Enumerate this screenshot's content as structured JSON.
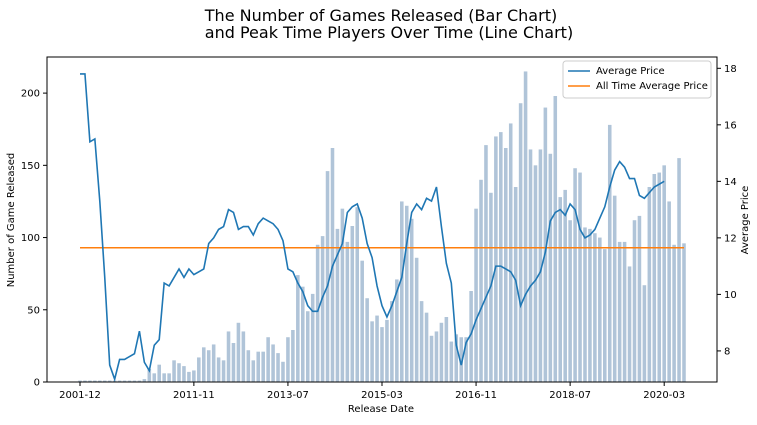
{
  "chart_data": {
    "type": "bar+line",
    "title_line1": "The Number of Games Released (Bar Chart)",
    "title_line2": "and Peak Time Players Over Time (Line Chart)",
    "xlabel": "Release Date",
    "ylabel_left": "Number of Game Released",
    "ylabel_right": "Average Price",
    "x_ticks": [
      "2001-12",
      "2011-11",
      "2013-07",
      "2015-03",
      "2016-11",
      "2018-07",
      "2020-03"
    ],
    "y_left_ticks": [
      "0",
      "50",
      "100",
      "150",
      "200"
    ],
    "y_left_lim": [
      0,
      225
    ],
    "y_right_ticks": [
      "8",
      "10",
      "12",
      "14",
      "16",
      "18"
    ],
    "y_right_lim": [
      6.9,
      18.4
    ],
    "bar_color": "#b0c4d8",
    "line_color": "#1f77b4",
    "avg_line_color": "#ff7f0e",
    "legend": {
      "position": "top-right",
      "entries": [
        {
          "label": "Average Price",
          "color": "#1f77b4"
        },
        {
          "label": "All Time Average Price",
          "color": "#ff7f0e"
        }
      ]
    },
    "bars_games_released": [
      1,
      1,
      1,
      1,
      1,
      1,
      1,
      1,
      1,
      1,
      1,
      1,
      1,
      2,
      9,
      6,
      12,
      6,
      6,
      15,
      13,
      11,
      7,
      8,
      17,
      24,
      22,
      26,
      17,
      15,
      35,
      27,
      41,
      35,
      22,
      15,
      21,
      21,
      31,
      26,
      20,
      14,
      31,
      36,
      74,
      66,
      49,
      61,
      95,
      101,
      146,
      162,
      106,
      120,
      97,
      108,
      121,
      84,
      58,
      42,
      46,
      38,
      43,
      56,
      71,
      125,
      122,
      113,
      86,
      56,
      48,
      32,
      35,
      41,
      45,
      28,
      33,
      31,
      31,
      63,
      120,
      140,
      164,
      131,
      170,
      173,
      162,
      179,
      135,
      193,
      215,
      161,
      150,
      161,
      190,
      158,
      198,
      128,
      133,
      112,
      148,
      145,
      107,
      106,
      103,
      100,
      92,
      178,
      129,
      97,
      97,
      80,
      112,
      115,
      67,
      135,
      144,
      145,
      150,
      125,
      95,
      155,
      96
    ],
    "avg_price_line": [
      17.8,
      17.8,
      15.4,
      15.5,
      13.3,
      10.6,
      7.5,
      7.0,
      7.7,
      7.7,
      7.8,
      7.9,
      8.7,
      7.6,
      7.3,
      8.2,
      8.4,
      10.4,
      10.3,
      10.6,
      10.9,
      10.6,
      10.9,
      10.7,
      10.8,
      10.9,
      11.8,
      12.0,
      12.3,
      12.4,
      13.0,
      12.9,
      12.3,
      12.4,
      12.4,
      12.1,
      12.5,
      12.7,
      12.6,
      12.5,
      12.3,
      11.9,
      10.9,
      10.8,
      10.4,
      10.1,
      9.6,
      9.4,
      9.4,
      9.9,
      10.3,
      11.0,
      11.4,
      11.8,
      12.9,
      13.1,
      13.2,
      12.7,
      11.8,
      11.3,
      10.3,
      9.6,
      9.2,
      9.6,
      10.1,
      10.6,
      11.8,
      12.9,
      13.2,
      13.0,
      13.4,
      13.3,
      13.8,
      12.4,
      11.1,
      10.4,
      8.2,
      7.5,
      8.3,
      8.6,
      9.1,
      9.5,
      9.9,
      10.3,
      11.0,
      11.0,
      10.9,
      10.8,
      10.5,
      9.6,
      10.0,
      10.3,
      10.5,
      10.8,
      11.5,
      12.6,
      12.9,
      13.0,
      12.8,
      13.2,
      13.0,
      12.3,
      12.0,
      12.1,
      12.3,
      12.7,
      13.1,
      13.8,
      14.4,
      14.7,
      14.5,
      14.1,
      14.1,
      13.5,
      13.4,
      13.6,
      13.8,
      13.9,
      14.0
    ]
  }
}
